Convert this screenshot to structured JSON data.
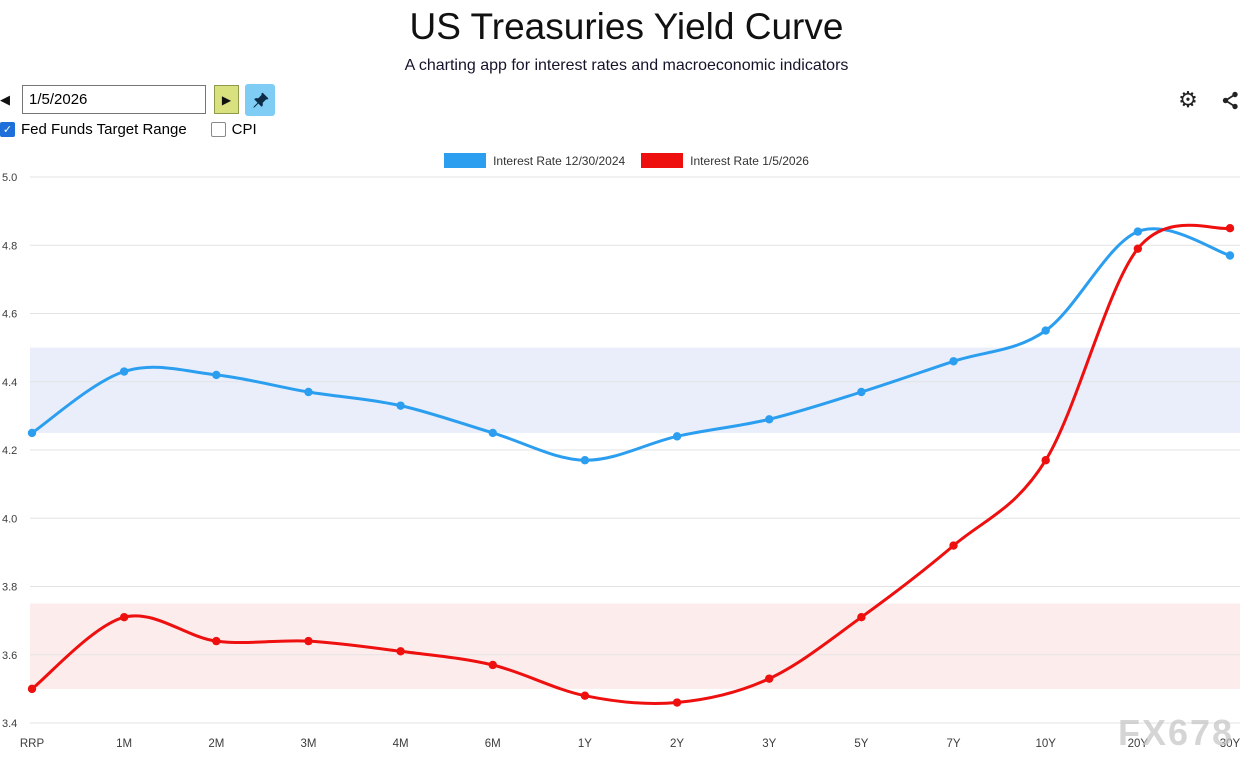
{
  "header": {
    "title": "US Treasuries Yield Curve",
    "subtitle": "A charting app for interest rates and macroeconomic indicators"
  },
  "toolbar": {
    "prev_button": "◀",
    "next_button": "▶",
    "date_value": "1/5/2026"
  },
  "filters": {
    "fed_funds_label": "Fed Funds Target Range",
    "fed_funds_checked": true,
    "cpi_label": "CPI",
    "cpi_checked": false
  },
  "watermark": "FX678",
  "chart_data": {
    "type": "line",
    "title": "",
    "xlabel": "",
    "ylabel": "",
    "ylim": [
      3.4,
      5.0
    ],
    "ytick_step": 0.2,
    "grid": true,
    "legend_position": "top",
    "categories": [
      "RRP",
      "1M",
      "2M",
      "3M",
      "4M",
      "6M",
      "1Y",
      "2Y",
      "3Y",
      "5Y",
      "7Y",
      "10Y",
      "20Y",
      "30Y"
    ],
    "series": [
      {
        "name": "Interest Rate 12/30/2024",
        "color": "#2b9ef0",
        "values": [
          4.25,
          4.43,
          4.42,
          4.37,
          4.33,
          4.25,
          4.17,
          4.24,
          4.29,
          4.37,
          4.46,
          4.55,
          4.84,
          4.77
        ]
      },
      {
        "name": "Interest Rate 1/5/2026",
        "color": "#ee0f0f",
        "values": [
          3.5,
          3.71,
          3.64,
          3.64,
          3.61,
          3.57,
          3.48,
          3.46,
          3.53,
          3.71,
          3.92,
          4.17,
          4.79,
          4.85
        ]
      }
    ],
    "bands": [
      {
        "label": "fed-funds-target-range-12/30/2024",
        "from": 4.25,
        "to": 4.5,
        "color": "#e9eefa"
      },
      {
        "label": "fed-funds-target-range-1/5/2026",
        "from": 3.5,
        "to": 3.75,
        "color": "#fdecec"
      }
    ]
  }
}
